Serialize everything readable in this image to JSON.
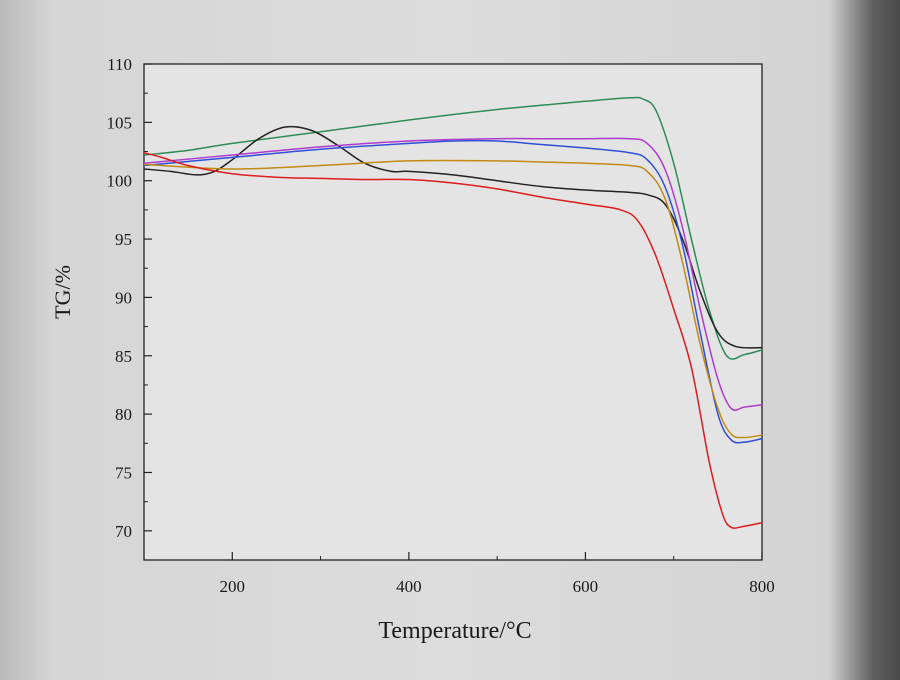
{
  "chart_data": {
    "type": "line",
    "title": "",
    "xlabel": "Temperature/°C",
    "ylabel": "TG/%",
    "xlim": [
      100,
      800
    ],
    "ylim": [
      67.5,
      110
    ],
    "xticks": [
      200,
      400,
      600,
      800
    ],
    "yticks": [
      70,
      75,
      80,
      85,
      90,
      95,
      100,
      105,
      110
    ],
    "grid": false,
    "legend": "none",
    "series": [
      {
        "color": "#2e8b57",
        "x": [
          100,
          150,
          200,
          300,
          400,
          500,
          600,
          650,
          665,
          680,
          700,
          720,
          740,
          760,
          780,
          800
        ],
        "y": [
          102.2,
          102.6,
          103.2,
          104.2,
          105.2,
          106.1,
          106.8,
          107.1,
          107.0,
          106.0,
          101.5,
          95.0,
          89.0,
          85.0,
          85.1,
          85.5
        ]
      },
      {
        "color": "#222222",
        "x": [
          100,
          130,
          160,
          180,
          200,
          230,
          260,
          290,
          320,
          350,
          380,
          400,
          450,
          500,
          550,
          600,
          650,
          670,
          690,
          710,
          730,
          750,
          770,
          800
        ],
        "y": [
          101.0,
          100.8,
          100.5,
          100.8,
          101.8,
          103.6,
          104.6,
          104.3,
          103.0,
          101.5,
          100.8,
          100.8,
          100.5,
          100.0,
          99.5,
          99.2,
          99.0,
          98.8,
          98.0,
          95.0,
          90.5,
          87.0,
          85.8,
          85.7
        ]
      },
      {
        "color": "#b03ad0",
        "x": [
          100,
          200,
          300,
          400,
          500,
          550,
          600,
          650,
          670,
          690,
          710,
          730,
          750,
          765,
          780,
          800
        ],
        "y": [
          101.5,
          102.2,
          102.9,
          103.4,
          103.6,
          103.6,
          103.6,
          103.6,
          103.2,
          101.0,
          96.0,
          89.0,
          83.0,
          80.5,
          80.6,
          80.8
        ]
      },
      {
        "color": "#2f4fd8",
        "x": [
          100,
          200,
          300,
          400,
          450,
          500,
          550,
          600,
          650,
          670,
          690,
          710,
          730,
          750,
          765,
          780,
          800
        ],
        "y": [
          101.3,
          102.0,
          102.7,
          103.2,
          103.4,
          103.4,
          103.1,
          102.8,
          102.4,
          101.8,
          99.5,
          94.5,
          87.0,
          80.0,
          77.8,
          77.6,
          77.9
        ]
      },
      {
        "color": "#c28a14",
        "x": [
          100,
          200,
          300,
          400,
          500,
          550,
          600,
          650,
          670,
          690,
          710,
          730,
          750,
          765,
          780,
          800
        ],
        "y": [
          101.4,
          101.0,
          101.3,
          101.7,
          101.7,
          101.6,
          101.5,
          101.3,
          100.8,
          98.5,
          93.0,
          86.0,
          80.5,
          78.3,
          78.0,
          78.2
        ]
      },
      {
        "color": "#dd1c1c",
        "x": [
          100,
          120,
          150,
          200,
          250,
          300,
          350,
          400,
          450,
          500,
          550,
          600,
          640,
          660,
          680,
          700,
          720,
          740,
          755,
          765,
          780,
          800
        ],
        "y": [
          102.4,
          102.0,
          101.3,
          100.6,
          100.3,
          100.2,
          100.1,
          100.1,
          99.8,
          99.3,
          98.6,
          98.0,
          97.5,
          96.5,
          93.5,
          89.0,
          84.0,
          76.0,
          71.5,
          70.3,
          70.4,
          70.7
        ]
      }
    ]
  }
}
